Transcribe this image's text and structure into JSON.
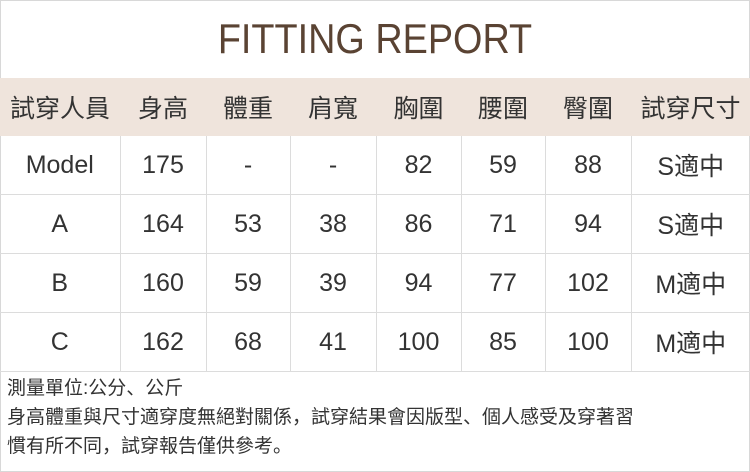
{
  "title": "FITTING REPORT",
  "colors": {
    "title": "#5a4333",
    "header_bg": "#efe4dc"
  },
  "table": {
    "headers": [
      "試穿人員",
      "身高",
      "體重",
      "肩寬",
      "胸圍",
      "腰圍",
      "臀圍",
      "試穿尺寸"
    ],
    "rows": [
      [
        "Model",
        "175",
        "-",
        "-",
        "82",
        "59",
        "88",
        "S適中"
      ],
      [
        "A",
        "164",
        "53",
        "38",
        "86",
        "71",
        "94",
        "S適中"
      ],
      [
        "B",
        "160",
        "59",
        "39",
        "94",
        "77",
        "102",
        "M適中"
      ],
      [
        "C",
        "162",
        "68",
        "41",
        "100",
        "85",
        "100",
        "M適中"
      ]
    ]
  },
  "notes": {
    "unit": "測量單位:公分、公斤",
    "disclaimer_line1": "身高體重與尺寸適穿度無絕對關係，試穿結果會因版型、個人感受及穿著習",
    "disclaimer_line2": "慣有所不同，試穿報告僅供參考。"
  }
}
